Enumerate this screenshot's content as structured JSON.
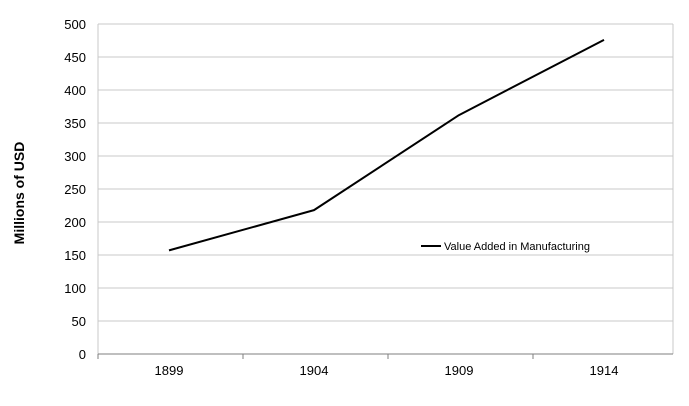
{
  "chart_data": {
    "type": "line",
    "title": "",
    "xlabel": "",
    "ylabel": "Millions of USD",
    "categories": [
      "1899",
      "1904",
      "1909",
      "1914"
    ],
    "series": [
      {
        "name": "Value Added in Manufacturing",
        "values": [
          157,
          218,
          362,
          476
        ],
        "color": "#000000"
      }
    ],
    "ylim": [
      0,
      500
    ],
    "yticks": [
      0,
      50,
      100,
      150,
      200,
      250,
      300,
      350,
      400,
      450,
      500
    ],
    "grid": true,
    "legend_position": "center-right"
  }
}
